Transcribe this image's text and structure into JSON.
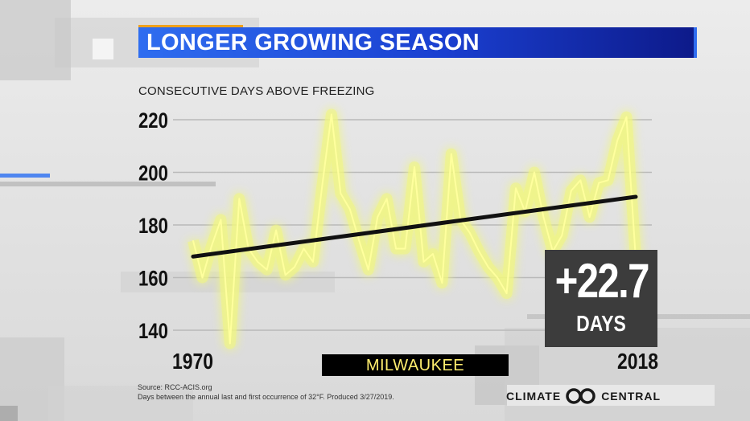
{
  "title": "LONGER GROWING SEASON",
  "subtitle": "CONSECUTIVE DAYS ABOVE FREEZING",
  "highlight": {
    "value": "+22.7",
    "unit": "DAYS"
  },
  "location": "MILWAUKEE",
  "source_line1": "Source: RCC-ACIS.org",
  "source_line2": "Days between the annual last and first occurrence of 32°F. Produced 3/27/2019.",
  "logo_left": "CLIMATE",
  "logo_right": "CENTRAL",
  "logo_icon": "climate-central-logo-icon",
  "colors": {
    "series": "#ffff9e",
    "trend": "#111111",
    "title_bar": "#1a3fd0",
    "accent": "#f0a11a"
  },
  "chart_data": {
    "type": "line",
    "x_start_label": "1970",
    "x_end_label": "2018",
    "xlim": [
      1970,
      2018
    ],
    "ylim": [
      135,
      225
    ],
    "yticks": [
      140,
      160,
      180,
      200,
      220
    ],
    "grid": true,
    "series": [
      {
        "x": [
          1970,
          1971,
          1972,
          1973,
          1974,
          1975,
          1976,
          1977,
          1978,
          1979,
          1980,
          1981,
          1982,
          1983,
          1984,
          1985,
          1986,
          1987,
          1988,
          1989,
          1990,
          1991,
          1992,
          1993,
          1994,
          1995,
          1996,
          1997,
          1998,
          1999,
          2000,
          2001,
          2002,
          2003,
          2004,
          2005,
          2006,
          2007,
          2008,
          2009,
          2010,
          2011,
          2012,
          2013,
          2014,
          2015,
          2016,
          2017,
          2018
        ],
        "values": [
          174,
          160,
          172,
          182,
          135,
          190,
          171,
          166,
          163,
          178,
          161,
          164,
          171,
          166,
          195,
          222,
          192,
          186,
          174,
          163,
          183,
          190,
          171,
          171,
          202,
          166,
          169,
          158,
          207,
          182,
          177,
          170,
          164,
          160,
          154,
          194,
          185,
          200,
          183,
          170,
          176,
          193,
          197,
          183,
          196,
          197,
          212,
          221,
          167
        ]
      }
    ],
    "trend": {
      "start": [
        1970,
        168
      ],
      "end": [
        2018,
        190.7
      ]
    }
  }
}
